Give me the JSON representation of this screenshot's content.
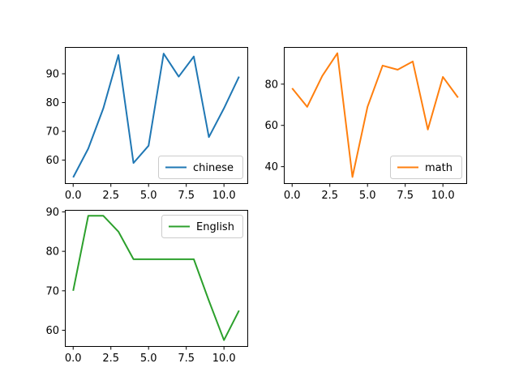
{
  "chart_data": [
    {
      "type": "line",
      "x": [
        0,
        1,
        2,
        3,
        4,
        5,
        6,
        7,
        8,
        9,
        10,
        11
      ],
      "series": [
        {
          "name": "chinese",
          "color": "#1f77b4",
          "values": [
            54,
            64,
            78,
            96.5,
            59,
            65,
            97,
            89,
            96,
            68,
            78,
            89
          ]
        }
      ],
      "xlim": [
        -0.55,
        11.55
      ],
      "ylim": [
        52,
        99.3
      ],
      "xticks": [
        0.0,
        2.5,
        5.0,
        7.5,
        10.0
      ],
      "xticklabels": [
        "0.0",
        "2.5",
        "5.0",
        "7.5",
        "10.0"
      ],
      "yticks": [
        60,
        70,
        80,
        90
      ],
      "yticklabels": [
        "60",
        "70",
        "80",
        "90"
      ],
      "legend": "lower-right",
      "grid": false
    },
    {
      "type": "line",
      "x": [
        0,
        1,
        2,
        3,
        4,
        5,
        6,
        7,
        8,
        9,
        10,
        11
      ],
      "series": [
        {
          "name": "math",
          "color": "#ff7f0e",
          "values": [
            78,
            69,
            84,
            95,
            35,
            69,
            89,
            87,
            91,
            58,
            83.5,
            73.5
          ]
        }
      ],
      "xlim": [
        -0.55,
        11.55
      ],
      "ylim": [
        32,
        98
      ],
      "xticks": [
        0.0,
        2.5,
        5.0,
        7.5,
        10.0
      ],
      "xticklabels": [
        "0.0",
        "2.5",
        "5.0",
        "7.5",
        "10.0"
      ],
      "yticks": [
        40,
        60,
        80
      ],
      "yticklabels": [
        "40",
        "60",
        "80"
      ],
      "legend": "lower-right",
      "grid": false
    },
    {
      "type": "line",
      "x": [
        0,
        1,
        2,
        3,
        4,
        5,
        6,
        7,
        8,
        9,
        10,
        11
      ],
      "series": [
        {
          "name": "English",
          "color": "#2ca02c",
          "values": [
            70,
            89,
            89,
            85,
            78,
            78,
            78,
            78,
            78,
            67.5,
            57.5,
            65
          ]
        }
      ],
      "xlim": [
        -0.55,
        11.55
      ],
      "ylim": [
        56,
        90.5
      ],
      "xticks": [
        0.0,
        2.5,
        5.0,
        7.5,
        10.0
      ],
      "xticklabels": [
        "0.0",
        "2.5",
        "5.0",
        "7.5",
        "10.0"
      ],
      "yticks": [
        60,
        70,
        80,
        90
      ],
      "yticklabels": [
        "60",
        "70",
        "80",
        "90"
      ],
      "legend": "upper-right",
      "grid": false
    }
  ]
}
